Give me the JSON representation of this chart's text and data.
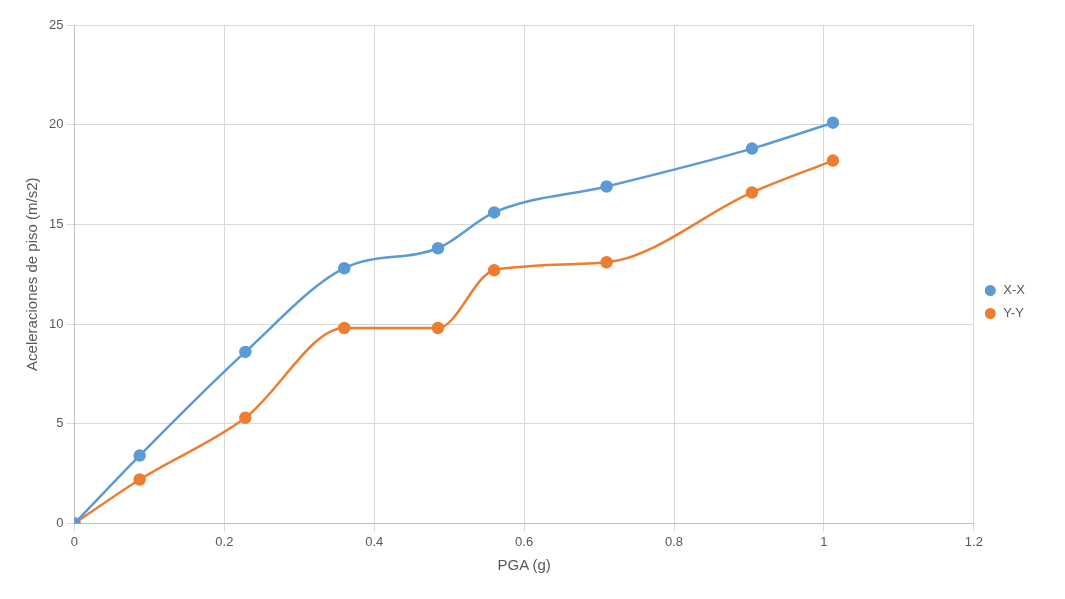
{
  "chart_data": {
    "type": "line",
    "xlabel": "PGA (g)",
    "ylabel": "Aceleraciones de piso (m/s2)",
    "x": [
      0,
      0.087,
      0.228,
      0.36,
      0.485,
      0.56,
      0.71,
      0.904,
      1.012
    ],
    "series": [
      {
        "name": "X-X",
        "color": "#5b9bd5",
        "values": [
          0,
          3.4,
          8.6,
          12.8,
          13.8,
          15.6,
          16.9,
          18.8,
          20.1
        ]
      },
      {
        "name": "Y-Y",
        "color": "#ed7d31",
        "values": [
          0,
          2.2,
          5.3,
          9.8,
          9.8,
          12.7,
          13.1,
          16.6,
          18.2
        ]
      }
    ],
    "xlim": [
      0,
      1.2
    ],
    "xticks": [
      0,
      0.2,
      0.4,
      0.6,
      0.8,
      1,
      1.2
    ],
    "ylim": [
      0,
      25
    ],
    "yticks": [
      0,
      5,
      10,
      15,
      20,
      25
    ],
    "grid": true,
    "legend": "right",
    "marker": "circle",
    "line_style": "solid"
  }
}
